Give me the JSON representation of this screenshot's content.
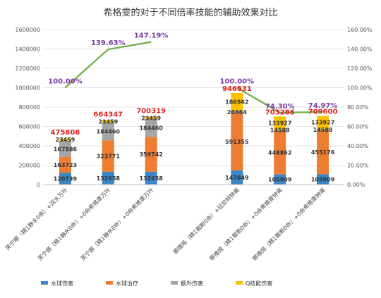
{
  "chart_data": {
    "type": "bar",
    "title": "希格雯的对于不同倍率技能的辅助效果对比",
    "categories": [
      "芙宁娜（精1静水0命）+双水万叶",
      "芙宁娜（精1静水0命）+0命希格雯万叶",
      "芙宁娜（精1静水0命）+0命希格雯万叶",
      "娜维娅（精1裁断0命）+班尼特钟离",
      "娜维娅（精1裁断0命）+0命希格雯钟离",
      "娜维娅（精1裁断0命）+0命希格雯钟离"
    ],
    "group_gap_after_index": 2,
    "series": [
      {
        "name": "水球伤害",
        "color": "#3b86c8",
        "values": [
          120739,
          132658,
          132658,
          147849,
          105909,
          105909
        ]
      },
      {
        "name": "水球治疗",
        "color": "#ed7d31",
        "values": [
          163723,
          323771,
          359742,
          591355,
          448862,
          455176
        ]
      },
      {
        "name": "额外伤害",
        "color": "#a5a5a5",
        "values": [
          167886,
          184460,
          184460,
          20364,
          14588,
          14588
        ]
      },
      {
        "name": "Q技能伤害",
        "color": "#ffc000",
        "values": [
          23459,
          23459,
          23459,
          186962,
          133927,
          133927
        ]
      }
    ],
    "totals": [
      475808,
      664347,
      700319,
      946531,
      703286,
      709600
    ],
    "line": {
      "color": "#70ad47",
      "values": [
        100.0,
        139.63,
        147.19,
        100.0,
        74.3,
        74.97
      ],
      "labels": [
        "100.00%",
        "139.63%",
        "147.19%",
        "100.00%",
        "74.30%",
        "74.97%"
      ]
    },
    "ylim": [
      0,
      1600000
    ],
    "y_ticks": [
      "0",
      "200000",
      "400000",
      "600000",
      "800000",
      "1000000",
      "1200000",
      "1400000",
      "1600000"
    ],
    "y2lim": [
      0,
      160
    ],
    "y2_ticks": [
      "0.00%",
      "20.00%",
      "40.00%",
      "60.00%",
      "80.00%",
      "100.00%",
      "120.00%",
      "140.00%",
      "160.00%"
    ],
    "legend_position": "bottom",
    "grid": true
  }
}
